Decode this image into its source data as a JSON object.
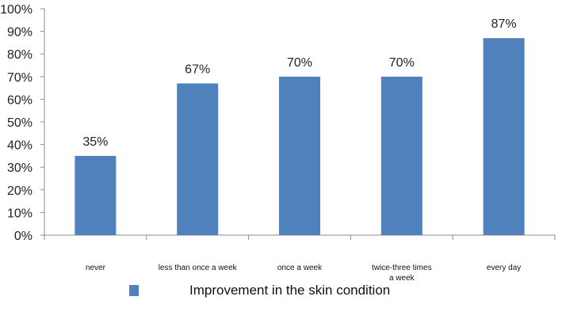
{
  "chart_data": {
    "type": "bar",
    "categories": [
      "never",
      "less than once a week",
      "once a week",
      "twice-three times a week",
      "every day"
    ],
    "category_lines": [
      [
        "never"
      ],
      [
        "less than once a week"
      ],
      [
        "once a week"
      ],
      [
        "twice-three times",
        "a week"
      ],
      [
        "every day"
      ]
    ],
    "series": [
      {
        "name": "Improvement in the skin condition",
        "values": [
          35,
          67,
          70,
          70,
          87
        ]
      }
    ],
    "data_labels": [
      "35%",
      "67%",
      "70%",
      "70%",
      "87%"
    ],
    "y_ticks": [
      "0%",
      "10%",
      "20%",
      "30%",
      "40%",
      "50%",
      "60%",
      "70%",
      "80%",
      "90%",
      "100%"
    ],
    "ylim": [
      0,
      100
    ],
    "title": "",
    "xlabel": "",
    "ylabel": "",
    "grid": false,
    "legend_position": "bottom",
    "bar_color": "#4F81BD"
  }
}
